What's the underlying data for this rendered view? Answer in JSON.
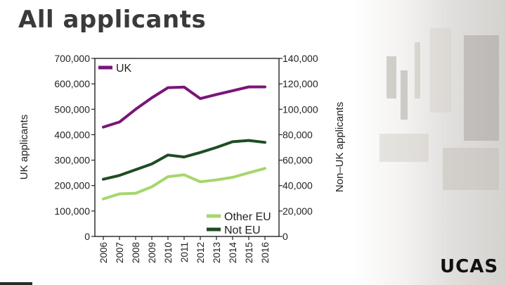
{
  "slide": {
    "title": "All applicants",
    "logo": "UCAS"
  },
  "colors": {
    "uk": "#7b1577",
    "other_eu": "#a6d66c",
    "not_eu": "#1e4d23",
    "axis": "#222222"
  },
  "chart_data": {
    "type": "line",
    "x": [
      "2006",
      "2007",
      "2008",
      "2009",
      "2010",
      "2011",
      "2012",
      "2013",
      "2014",
      "2015",
      "2016"
    ],
    "left_axis": {
      "label": "UK applicants",
      "ticks": [
        0,
        100000,
        200000,
        300000,
        400000,
        500000,
        600000,
        700000
      ],
      "tick_labels": [
        "0",
        "100,000",
        "200,000",
        "300,000",
        "400,000",
        "500,000",
        "600,000",
        "700,000"
      ],
      "ylim": [
        0,
        700000
      ]
    },
    "right_axis": {
      "label": "Non–UK applicants",
      "ticks": [
        0,
        20000,
        40000,
        60000,
        80000,
        100000,
        120000,
        140000
      ],
      "tick_labels": [
        "0",
        "20,000",
        "40,000",
        "60,000",
        "80,000",
        "100,000",
        "120,000",
        "140,000"
      ],
      "ylim": [
        0,
        140000
      ]
    },
    "series": [
      {
        "name": "UK",
        "axis": "left",
        "color": "#7b1577",
        "values": [
          430000,
          450000,
          500000,
          545000,
          585000,
          587000,
          542000,
          558000,
          573000,
          588000,
          588000
        ]
      },
      {
        "name": "Other EU",
        "axis": "right",
        "color": "#a6d66c",
        "values": [
          29500,
          33500,
          34000,
          39000,
          47000,
          48500,
          43000,
          44500,
          46500,
          50000,
          53500
        ]
      },
      {
        "name": "Not EU",
        "axis": "right",
        "color": "#1e4d23",
        "values": [
          45000,
          48000,
          52500,
          57000,
          64000,
          62500,
          66000,
          70000,
          74500,
          75500,
          74000
        ]
      }
    ],
    "legends": [
      {
        "position": "top-left",
        "entries": [
          "UK"
        ]
      },
      {
        "position": "bottom-right",
        "entries": [
          "Other EU",
          "Not EU"
        ]
      }
    ]
  }
}
